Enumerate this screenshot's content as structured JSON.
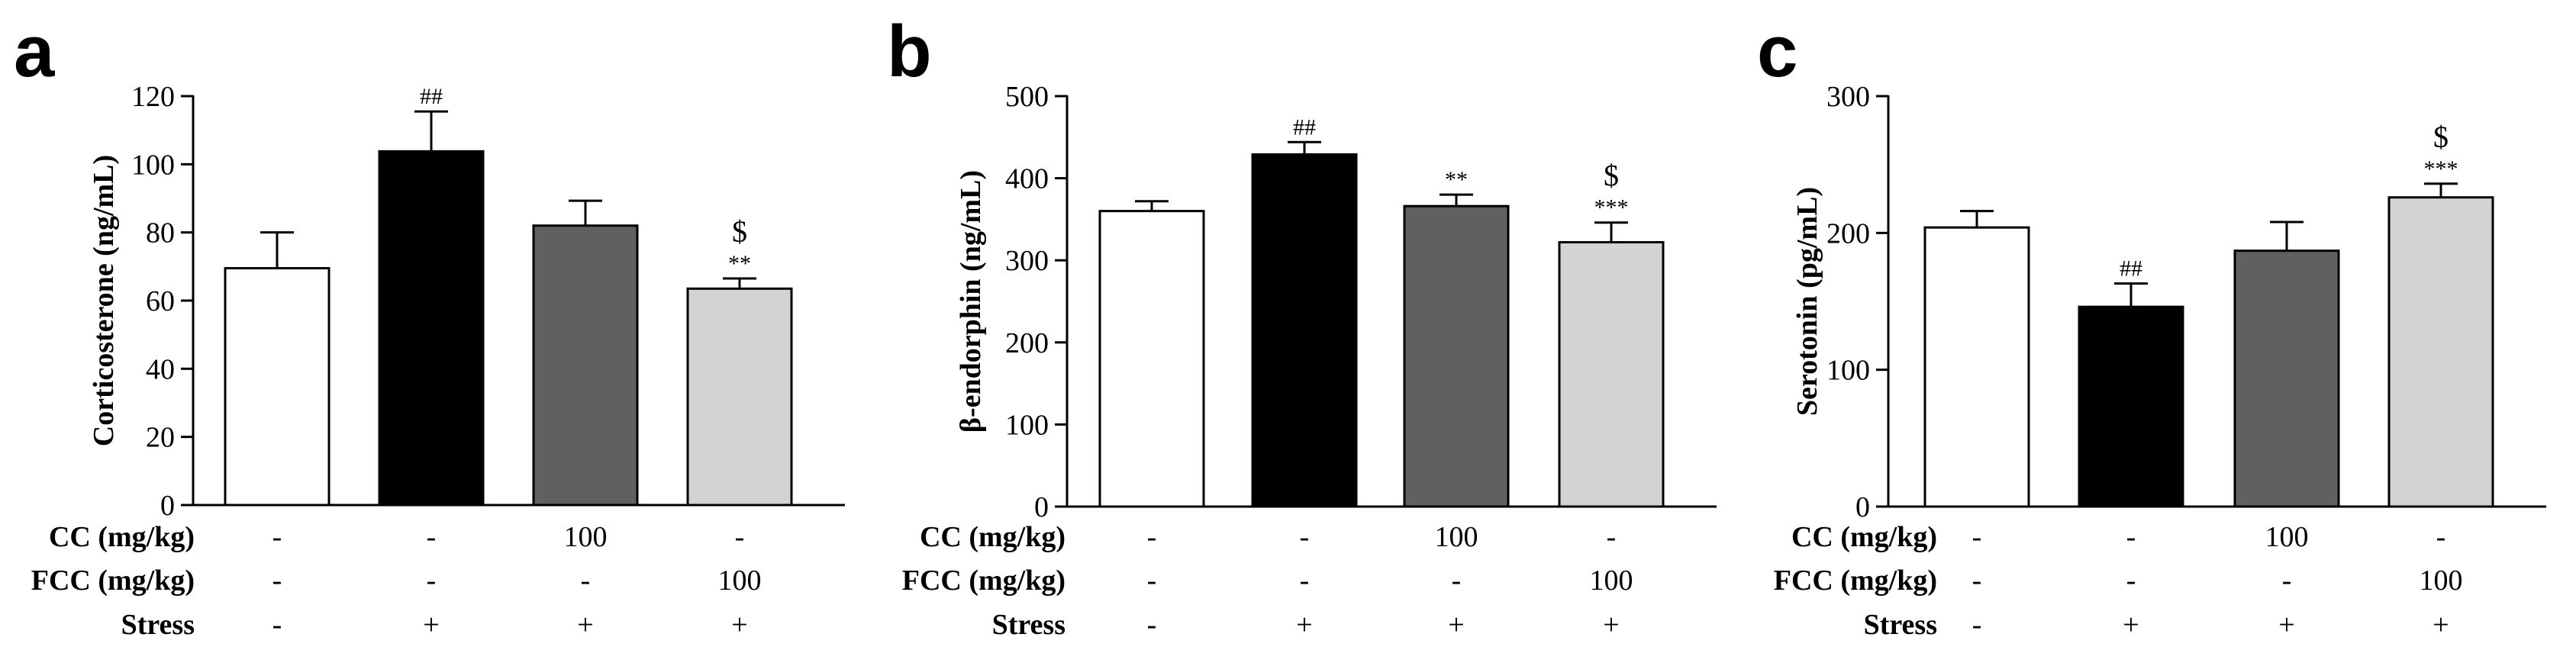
{
  "chart_data": [
    {
      "type": "bar",
      "panel": "a",
      "ylabel": "Corticosterone (ng/mL)",
      "ylim": [
        0,
        120
      ],
      "yticks": [
        0,
        20,
        40,
        60,
        80,
        100,
        120
      ],
      "values": [
        69.5,
        103.8,
        82.0,
        63.5
      ],
      "errors": [
        10.5,
        11.7,
        7.3,
        3.0
      ],
      "annotations": [
        [
          "",
          ""
        ],
        [
          "",
          "##"
        ],
        [
          "",
          ""
        ],
        [
          "$",
          "**"
        ]
      ],
      "colors": [
        "#ffffff",
        "#000000",
        "#606060",
        "#d3d3d3"
      ]
    },
    {
      "type": "bar",
      "panel": "b",
      "ylabel": "β-endorphin (ng/mL)",
      "ylim": [
        0,
        500
      ],
      "yticks": [
        0,
        100,
        200,
        300,
        400,
        500
      ],
      "values": [
        360,
        429,
        366,
        322
      ],
      "errors": [
        12,
        15,
        14,
        24
      ],
      "annotations": [
        [
          "",
          ""
        ],
        [
          "",
          "##"
        ],
        [
          "",
          "**"
        ],
        [
          "$",
          "***"
        ]
      ],
      "colors": [
        "#ffffff",
        "#000000",
        "#606060",
        "#d3d3d3"
      ]
    },
    {
      "type": "bar",
      "panel": "c",
      "ylabel": "Serotonin (pg/mL)",
      "ylim": [
        0,
        300
      ],
      "yticks": [
        0,
        100,
        200,
        300
      ],
      "values": [
        204,
        146,
        187,
        226
      ],
      "errors": [
        12,
        17,
        21,
        10
      ],
      "annotations": [
        [
          "",
          ""
        ],
        [
          "",
          "##"
        ],
        [
          "",
          ""
        ],
        [
          "$",
          "***"
        ]
      ],
      "colors": [
        "#ffffff",
        "#000000",
        "#606060",
        "#d3d3d3"
      ]
    }
  ],
  "conditions": [
    {
      "label": "CC (mg/kg)",
      "values": [
        "-",
        "-",
        "100",
        "-"
      ]
    },
    {
      "label": "FCC (mg/kg)",
      "values": [
        "-",
        "-",
        "-",
        "100"
      ]
    },
    {
      "label": "Stress",
      "values": [
        "-",
        "+",
        "+",
        "+"
      ]
    }
  ]
}
